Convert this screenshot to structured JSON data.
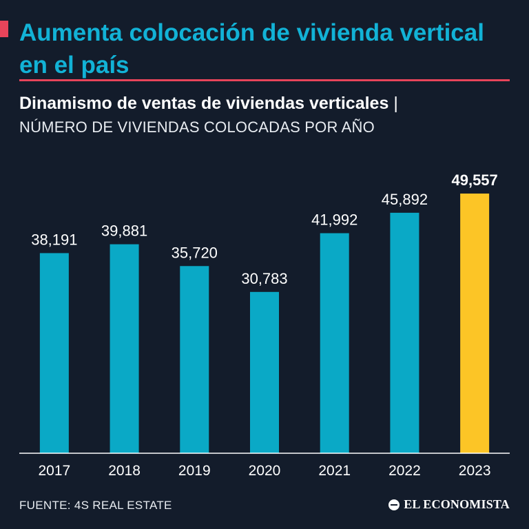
{
  "header": {
    "title": "Aumenta colocación de vivienda vertical en el país",
    "accent_color": "#e8445a",
    "title_color": "#12b2d6"
  },
  "chart_data": {
    "type": "bar",
    "title": "Dinamismo de ventas de viviendas verticales",
    "title_separator": "|",
    "subtitle": "NÚMERO DE VIVIENDAS COLOCADAS POR AÑO",
    "categories": [
      "2017",
      "2018",
      "2019",
      "2020",
      "2021",
      "2022",
      "2023"
    ],
    "values": [
      38191,
      39881,
      35720,
      30783,
      41992,
      45892,
      49557
    ],
    "value_labels": [
      "38,191",
      "39,881",
      "35,720",
      "30,783",
      "41,992",
      "45,892",
      "49,557"
    ],
    "highlight": "2023",
    "bar_color": "#0aa9c6",
    "highlight_color": "#fcc526",
    "ylim": [
      0,
      49557
    ],
    "grid": false,
    "legend": "none"
  },
  "footer": {
    "source": "FUENTE: 4S REAL ESTATE",
    "brand": "EL ECONOMISTA",
    "brand_icon": "globe-icon"
  }
}
